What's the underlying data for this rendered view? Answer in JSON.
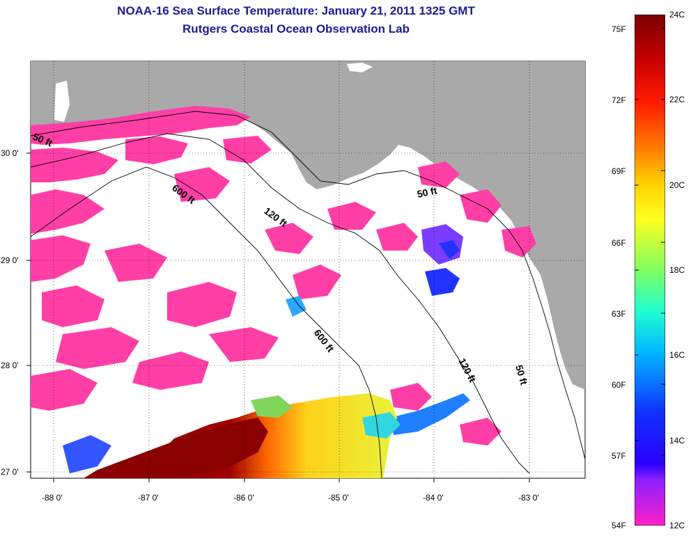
{
  "header": {
    "title": "NOAA-16 Sea Surface Temperature:  January 21, 2011 1325 GMT",
    "subtitle": "Rutgers Coastal Ocean Observation Lab"
  },
  "map": {
    "lon_range": [
      -88.3,
      -82.55
    ],
    "lat_range": [
      26.92,
      30.85
    ],
    "lon_ticks": [
      {
        "value": -88,
        "label": "-88 0'"
      },
      {
        "value": -87,
        "label": "-87 0'"
      },
      {
        "value": -86,
        "label": "-86 0'"
      },
      {
        "value": -85,
        "label": "-85 0'"
      },
      {
        "value": -84,
        "label": "-84 0'"
      },
      {
        "value": -83,
        "label": "-83 0'"
      }
    ],
    "lat_ticks": [
      {
        "value": 30,
        "label": "30 0'"
      },
      {
        "value": 29,
        "label": "29 0'"
      },
      {
        "value": 28,
        "label": "28 0'"
      },
      {
        "value": 27,
        "label": "27 0'"
      }
    ],
    "contour_labels": [
      {
        "name": "50-ft-west",
        "text": "50 ft"
      },
      {
        "name": "600-ft-north",
        "text": "600 ft"
      },
      {
        "name": "120-ft-north",
        "text": "120 ft"
      },
      {
        "name": "50-ft-east",
        "text": "50 ft"
      },
      {
        "name": "600-ft-south",
        "text": "600 ft"
      },
      {
        "name": "120-ft-south",
        "text": "120 ft"
      },
      {
        "name": "50-ft-southeast",
        "text": "50 ft"
      }
    ],
    "colors": {
      "land": "#a9a9a9",
      "cloud": "#ff3fa6",
      "ocean_nodata": "#ffffff"
    }
  },
  "colorbar": {
    "celsius_labels": [
      "24C",
      "22C",
      "20C",
      "18C",
      "16C",
      "14C",
      "12C"
    ],
    "fahrenheit_labels": [
      "75F",
      "72F",
      "69F",
      "66F",
      "63F",
      "60F",
      "57F",
      "54F"
    ],
    "range_c": [
      12,
      24
    ]
  }
}
